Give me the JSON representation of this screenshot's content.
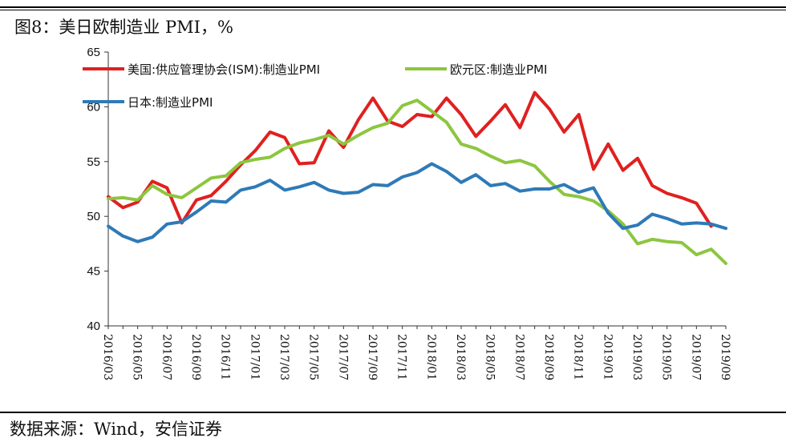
{
  "title": "图8：美日欧制造业 PMI，%",
  "source": "数据来源：Wind，安信证券",
  "chart_data": {
    "type": "line",
    "title": "图8：美日欧制造业 PMI，%",
    "xlabel": "",
    "ylabel": "",
    "ylim": [
      40,
      65
    ],
    "yticks": [
      40,
      45,
      50,
      55,
      60,
      65
    ],
    "x": [
      "2016/03",
      "2016/04",
      "2016/05",
      "2016/06",
      "2016/07",
      "2016/08",
      "2016/09",
      "2016/10",
      "2016/11",
      "2016/12",
      "2017/01",
      "2017/02",
      "2017/03",
      "2017/04",
      "2017/05",
      "2017/06",
      "2017/07",
      "2017/08",
      "2017/09",
      "2017/10",
      "2017/11",
      "2017/12",
      "2018/01",
      "2018/02",
      "2018/03",
      "2018/04",
      "2018/05",
      "2018/06",
      "2018/07",
      "2018/08",
      "2018/09",
      "2018/10",
      "2018/11",
      "2018/12",
      "2019/01",
      "2019/02",
      "2019/03",
      "2019/04",
      "2019/05",
      "2019/06",
      "2019/07",
      "2019/08",
      "2019/09"
    ],
    "xtick_labels": [
      "2016/03",
      "2016/05",
      "2016/07",
      "2016/09",
      "2016/11",
      "2017/01",
      "2017/03",
      "2017/05",
      "2017/07",
      "2017/09",
      "2017/11",
      "2018/01",
      "2018/03",
      "2018/05",
      "2018/07",
      "2018/09",
      "2018/11",
      "2019/01",
      "2019/03",
      "2019/05",
      "2019/07",
      "2019/09"
    ],
    "legend": "top-left",
    "series": [
      {
        "name": "美国:供应管理协会(ISM):制造业PMI",
        "color": "#e02020",
        "values": [
          51.8,
          50.8,
          51.3,
          53.2,
          52.6,
          49.4,
          51.5,
          51.9,
          53.2,
          54.7,
          56.0,
          57.7,
          57.2,
          54.8,
          54.9,
          57.8,
          56.3,
          58.8,
          60.8,
          58.7,
          58.2,
          59.3,
          59.1,
          60.8,
          59.3,
          57.3,
          58.7,
          60.2,
          58.1,
          61.3,
          59.8,
          57.7,
          59.3,
          54.3,
          56.6,
          54.2,
          55.3,
          52.8,
          52.1,
          51.7,
          51.2,
          49.1,
          null
        ]
      },
      {
        "name": "欧元区:制造业PMI",
        "color": "#8cc63f",
        "values": [
          51.6,
          51.7,
          51.5,
          52.8,
          52.0,
          51.7,
          52.6,
          53.5,
          53.7,
          54.9,
          55.2,
          55.4,
          56.2,
          56.7,
          57.0,
          57.4,
          56.6,
          57.4,
          58.1,
          58.5,
          60.1,
          60.6,
          59.6,
          58.6,
          56.6,
          56.2,
          55.5,
          54.9,
          55.1,
          54.6,
          53.2,
          52.0,
          51.8,
          51.4,
          50.5,
          49.3,
          47.5,
          47.9,
          47.7,
          47.6,
          46.5,
          47.0,
          45.7
        ]
      },
      {
        "name": "日本:制造业PMI",
        "color": "#2e7ab8",
        "values": [
          49.1,
          48.2,
          47.7,
          48.1,
          49.3,
          49.5,
          50.4,
          51.4,
          51.3,
          52.4,
          52.7,
          53.3,
          52.4,
          52.7,
          53.1,
          52.4,
          52.1,
          52.2,
          52.9,
          52.8,
          53.6,
          54.0,
          54.8,
          54.1,
          53.1,
          53.8,
          52.8,
          53.0,
          52.3,
          52.5,
          52.5,
          52.9,
          52.2,
          52.6,
          50.3,
          48.9,
          49.2,
          50.2,
          49.8,
          49.3,
          49.4,
          49.3,
          48.9
        ]
      }
    ]
  }
}
